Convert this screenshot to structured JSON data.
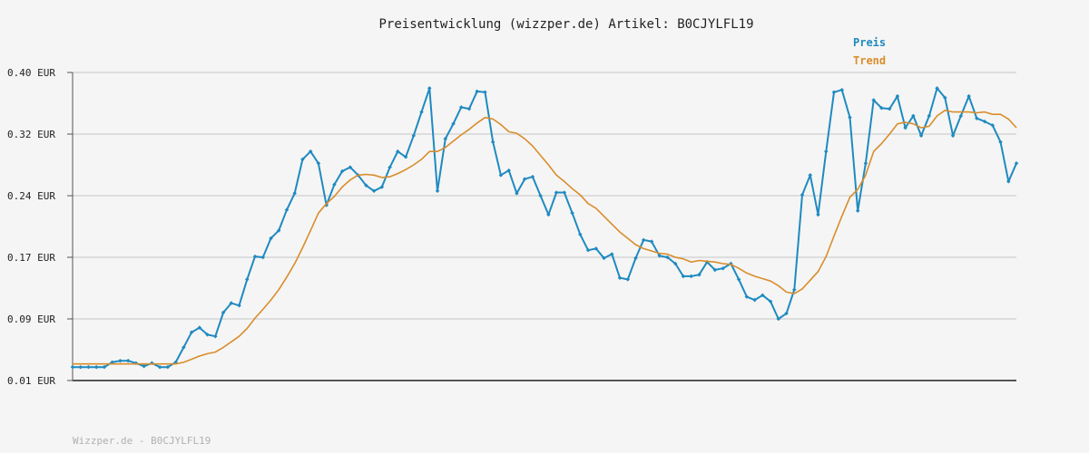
{
  "footer_text": "Wizzper.de - B0CJYLFL19",
  "colors": {
    "preis": "#1f8ac0",
    "trend": "#d98d2b",
    "grid": "#dddddd",
    "axis": "#555555"
  },
  "chart_data": {
    "type": "line",
    "title": "Preisentwicklung (wizzper.de) Artikel: B0CJYLFL19",
    "xlabel": "",
    "ylabel": "",
    "y_ticks": [
      "0.01 EUR",
      "0.09 EUR",
      "0.17 EUR",
      "0.24 EUR",
      "0.32 EUR",
      "0.40 EUR"
    ],
    "ylim": [
      0.01,
      0.4
    ],
    "grid": true,
    "legend_position": "top-right",
    "series": [
      {
        "name": "Preis",
        "values": [
          0.027,
          0.027,
          0.027,
          0.027,
          0.027,
          0.033,
          0.035,
          0.035,
          0.032,
          0.028,
          0.032,
          0.027,
          0.027,
          0.033,
          0.052,
          0.071,
          0.077,
          0.068,
          0.066,
          0.096,
          0.108,
          0.105,
          0.138,
          0.167,
          0.166,
          0.19,
          0.2,
          0.226,
          0.247,
          0.29,
          0.3,
          0.285,
          0.232,
          0.258,
          0.275,
          0.28,
          0.27,
          0.257,
          0.25,
          0.255,
          0.28,
          0.3,
          0.293,
          0.32,
          0.35,
          0.38,
          0.25,
          0.316,
          0.335,
          0.356,
          0.354,
          0.376,
          0.375,
          0.312,
          0.27,
          0.276,
          0.247,
          0.265,
          0.268,
          0.244,
          0.22,
          0.248,
          0.248,
          0.222,
          0.195,
          0.175,
          0.177,
          0.165,
          0.17,
          0.14,
          0.138,
          0.165,
          0.188,
          0.186,
          0.168,
          0.166,
          0.158,
          0.142,
          0.142,
          0.144,
          0.16,
          0.15,
          0.152,
          0.158,
          0.138,
          0.116,
          0.112,
          0.118,
          0.11,
          0.088,
          0.095,
          0.125,
          0.245,
          0.27,
          0.22,
          0.3,
          0.375,
          0.378,
          0.343,
          0.225,
          0.285,
          0.365,
          0.355,
          0.354,
          0.37,
          0.33,
          0.345,
          0.32,
          0.345,
          0.38,
          0.368,
          0.32,
          0.345,
          0.37,
          0.342,
          0.338,
          0.333,
          0.312,
          0.262,
          0.285
        ]
      },
      {
        "name": "Trend",
        "values": [
          0.031,
          0.031,
          0.031,
          0.031,
          0.031,
          0.031,
          0.031,
          0.031,
          0.031,
          0.031,
          0.031,
          0.031,
          0.031,
          0.031,
          0.033,
          0.037,
          0.041,
          0.044,
          0.046,
          0.052,
          0.059,
          0.066,
          0.076,
          0.089,
          0.1,
          0.112,
          0.125,
          0.141,
          0.158,
          0.178,
          0.2,
          0.222,
          0.234,
          0.243,
          0.255,
          0.264,
          0.27,
          0.271,
          0.27,
          0.267,
          0.268,
          0.272,
          0.277,
          0.283,
          0.29,
          0.3,
          0.3,
          0.305,
          0.313,
          0.321,
          0.328,
          0.336,
          0.343,
          0.341,
          0.334,
          0.325,
          0.323,
          0.316,
          0.307,
          0.295,
          0.283,
          0.27,
          0.262,
          0.253,
          0.245,
          0.234,
          0.228,
          0.218,
          0.208,
          0.198,
          0.19,
          0.182,
          0.177,
          0.174,
          0.171,
          0.17,
          0.166,
          0.164,
          0.16,
          0.162,
          0.161,
          0.16,
          0.158,
          0.157,
          0.152,
          0.146,
          0.142,
          0.139,
          0.136,
          0.13,
          0.122,
          0.12,
          0.126,
          0.137,
          0.148,
          0.167,
          0.193,
          0.218,
          0.242,
          0.252,
          0.27,
          0.3,
          0.31,
          0.322,
          0.335,
          0.337,
          0.335,
          0.33,
          0.332,
          0.345,
          0.352,
          0.35,
          0.35,
          0.35,
          0.349,
          0.35,
          0.347,
          0.347,
          0.341,
          0.33
        ]
      }
    ]
  }
}
